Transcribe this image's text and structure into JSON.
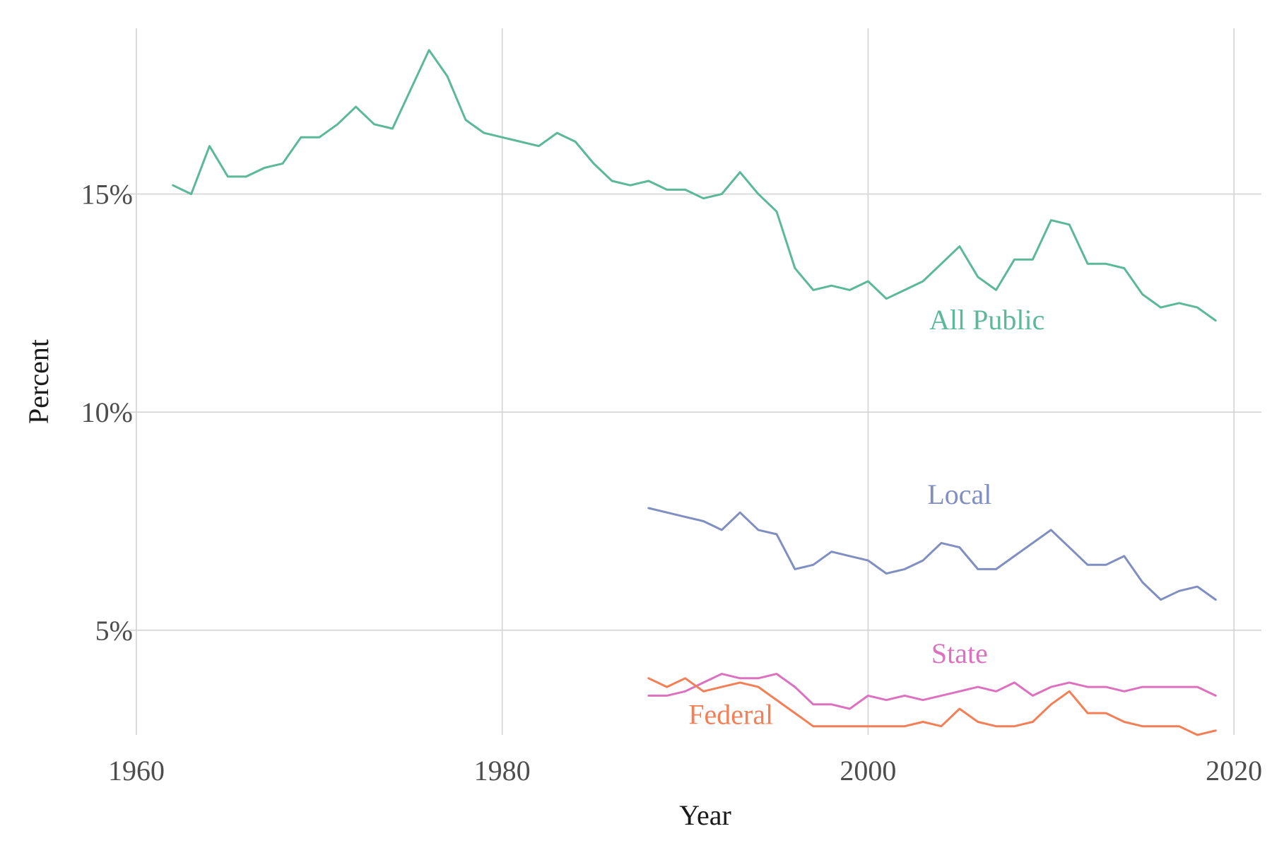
{
  "chart_data": {
    "type": "line",
    "title": "",
    "xlabel": "Year",
    "ylabel": "Percent",
    "xlim": [
      1959.5,
      2021.5
    ],
    "ylim": [
      2.6,
      18.8
    ],
    "x_ticks": [
      1960,
      1980,
      2000,
      2020
    ],
    "x_tick_labels": [
      "1960",
      "1980",
      "2000",
      "2020"
    ],
    "y_ticks": [
      5,
      10,
      15
    ],
    "y_tick_labels": [
      "5%",
      "10%",
      "15%"
    ],
    "grid": true,
    "legend": "none",
    "series": [
      {
        "name": "All Public",
        "color": "#5bb899",
        "label_pos": [
          2006.5,
          11.9
        ],
        "x": [
          1962,
          1963,
          1964,
          1965,
          1966,
          1967,
          1968,
          1969,
          1970,
          1971,
          1972,
          1973,
          1974,
          1975,
          1976,
          1977,
          1978,
          1979,
          1980,
          1981,
          1982,
          1983,
          1984,
          1985,
          1986,
          1987,
          1988,
          1989,
          1990,
          1991,
          1992,
          1993,
          1994,
          1995,
          1996,
          1997,
          1998,
          1999,
          2000,
          2001,
          2002,
          2003,
          2004,
          2005,
          2006,
          2007,
          2008,
          2009,
          2010,
          2011,
          2012,
          2013,
          2014,
          2015,
          2016,
          2017,
          2018,
          2019
        ],
        "y": [
          15.2,
          15.0,
          16.1,
          15.4,
          15.4,
          15.6,
          15.7,
          16.3,
          16.3,
          16.6,
          17.0,
          16.6,
          16.5,
          17.4,
          18.3,
          17.7,
          16.7,
          16.4,
          16.3,
          16.2,
          16.1,
          16.4,
          16.2,
          15.7,
          15.3,
          15.2,
          15.3,
          15.1,
          15.1,
          14.9,
          15.0,
          15.5,
          15.0,
          14.6,
          13.3,
          12.8,
          12.9,
          12.8,
          13.0,
          12.6,
          12.8,
          13.0,
          13.4,
          13.8,
          13.1,
          12.8,
          13.5,
          13.5,
          14.4,
          14.3,
          13.4,
          13.4,
          13.3,
          12.7,
          12.4,
          12.5,
          12.4,
          12.1
        ]
      },
      {
        "name": "Local",
        "color": "#7f8fc1",
        "label_pos": [
          2005.0,
          7.9
        ],
        "x": [
          1988,
          1989,
          1990,
          1991,
          1992,
          1993,
          1994,
          1995,
          1996,
          1997,
          1998,
          1999,
          2000,
          2001,
          2002,
          2003,
          2004,
          2005,
          2006,
          2007,
          2008,
          2009,
          2010,
          2011,
          2012,
          2013,
          2014,
          2015,
          2016,
          2017,
          2018,
          2019
        ],
        "y": [
          7.8,
          7.7,
          7.6,
          7.5,
          7.3,
          7.7,
          7.3,
          7.2,
          6.4,
          6.5,
          6.8,
          6.7,
          6.6,
          6.3,
          6.4,
          6.6,
          7.0,
          6.9,
          6.4,
          6.4,
          6.7,
          7.0,
          7.3,
          6.9,
          6.5,
          6.5,
          6.7,
          6.1,
          5.7,
          5.9,
          6.0,
          5.7
        ]
      },
      {
        "name": "State",
        "color": "#dd71bf",
        "label_pos": [
          2005.0,
          4.25
        ],
        "x": [
          1988,
          1989,
          1990,
          1991,
          1992,
          1993,
          1994,
          1995,
          1996,
          1997,
          1998,
          1999,
          2000,
          2001,
          2002,
          2003,
          2004,
          2005,
          2006,
          2007,
          2008,
          2009,
          2010,
          2011,
          2012,
          2013,
          2014,
          2015,
          2016,
          2017,
          2018,
          2019
        ],
        "y": [
          3.5,
          3.5,
          3.6,
          3.8,
          4.0,
          3.9,
          3.9,
          4.0,
          3.7,
          3.3,
          3.3,
          3.2,
          3.5,
          3.4,
          3.5,
          3.4,
          3.5,
          3.6,
          3.7,
          3.6,
          3.8,
          3.5,
          3.7,
          3.8,
          3.7,
          3.7,
          3.6,
          3.7,
          3.7,
          3.7,
          3.7,
          3.5
        ]
      },
      {
        "name": "Federal",
        "color": "#f47e55",
        "label_pos": [
          1992.5,
          2.85
        ],
        "x": [
          1988,
          1989,
          1990,
          1991,
          1992,
          1993,
          1994,
          1995,
          1996,
          1997,
          1998,
          1999,
          2000,
          2001,
          2002,
          2003,
          2004,
          2005,
          2006,
          2007,
          2008,
          2009,
          2010,
          2011,
          2012,
          2013,
          2014,
          2015,
          2016,
          2017,
          2018,
          2019
        ],
        "y": [
          3.9,
          3.7,
          3.9,
          3.6,
          3.7,
          3.8,
          3.7,
          3.4,
          3.1,
          2.8,
          2.8,
          2.8,
          2.8,
          2.8,
          2.8,
          2.9,
          2.8,
          3.2,
          2.9,
          2.8,
          2.8,
          2.9,
          3.3,
          3.6,
          3.1,
          3.1,
          2.9,
          2.8,
          2.8,
          2.8,
          2.6,
          2.7
        ]
      }
    ]
  }
}
